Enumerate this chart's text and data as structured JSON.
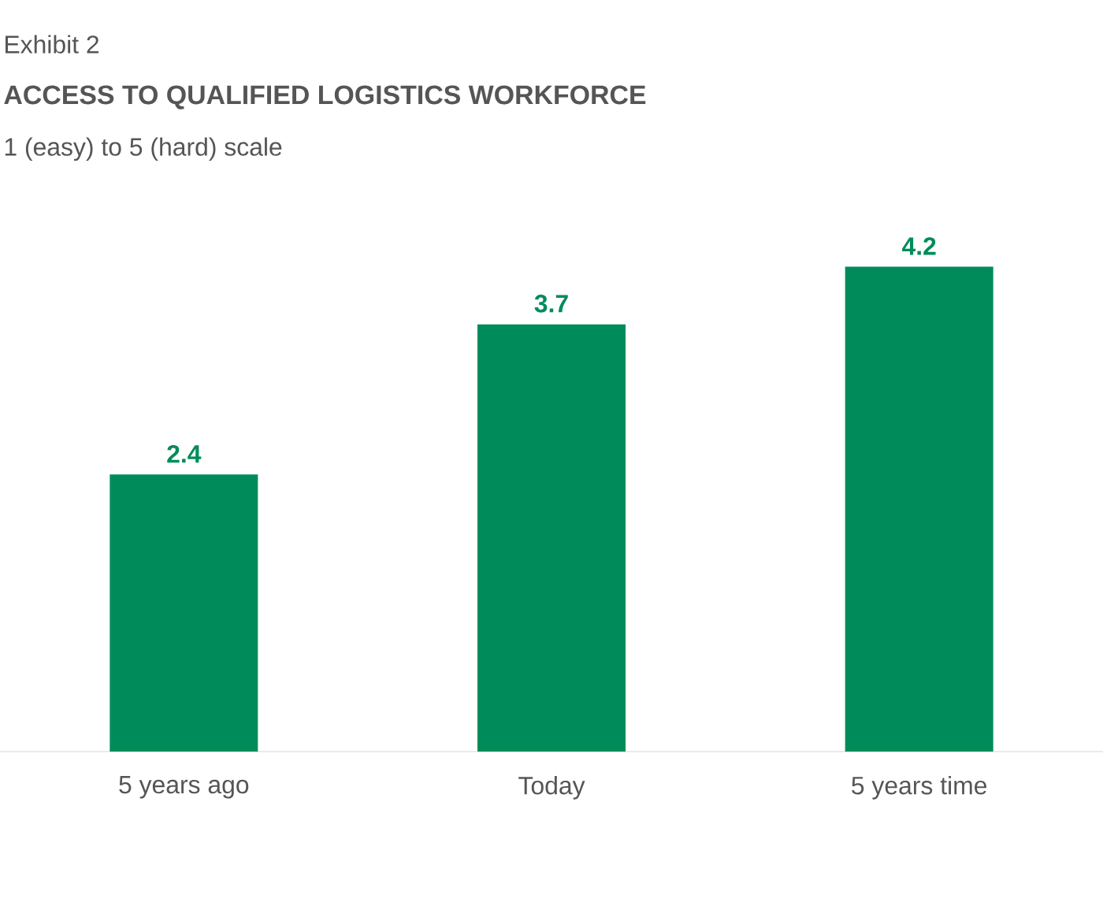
{
  "chart_data": {
    "type": "bar",
    "title": "ACCESS TO QUALIFIED LOGISTICS WORKFORCE",
    "subtitle": "1 (easy) to 5 (hard) scale",
    "annotations": [
      "Exhibit 2"
    ],
    "categories": [
      "5 years ago",
      "Today",
      "5 years time"
    ],
    "values": [
      2.4,
      3.7,
      4.2
    ],
    "color": "#008c5a",
    "data_labels": true
  }
}
